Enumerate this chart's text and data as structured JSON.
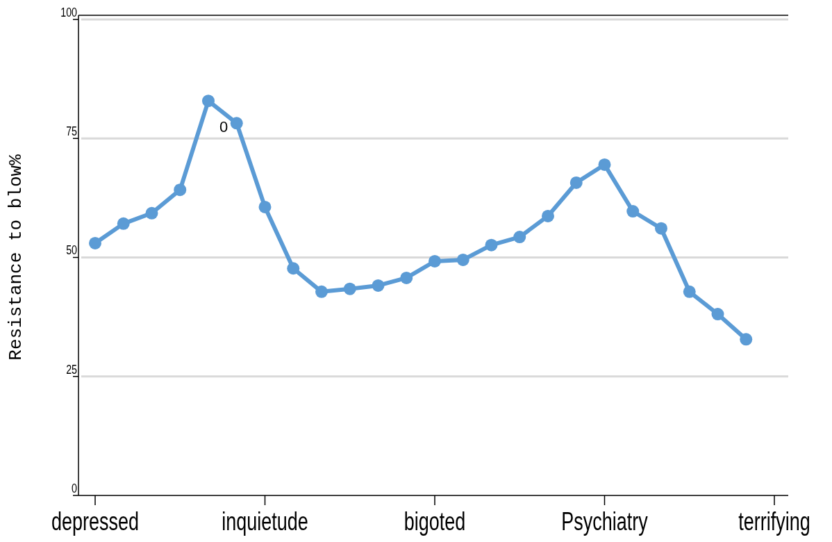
{
  "chart_data": {
    "type": "line",
    "ylabel": "Resistance to blow%",
    "categories": [
      "depressed",
      null,
      null,
      null,
      null,
      null,
      "inquietude",
      null,
      null,
      null,
      null,
      null,
      "bigoted",
      null,
      null,
      null,
      null,
      null,
      "Psychiatry",
      null,
      null,
      null,
      null,
      null,
      "terrifying"
    ],
    "series": [
      {
        "color": "#5b9bd5",
        "values": [
          53,
          57.1,
          59.3,
          64.2,
          82.9,
          78.2,
          60.6,
          47.7,
          42.8,
          43.4,
          44.1,
          45.7,
          49.2,
          49.5,
          52.6,
          54.3,
          58.7,
          65.7,
          69.5,
          59.7,
          56.1,
          42.8,
          38.1,
          32.8,
          null
        ]
      }
    ],
    "ylim": [
      0,
      100
    ],
    "yticks": [
      0,
      25,
      50,
      75,
      100
    ],
    "grid": "y",
    "marker": "circle",
    "line_style": "solid",
    "annotations": [
      "0"
    ]
  }
}
